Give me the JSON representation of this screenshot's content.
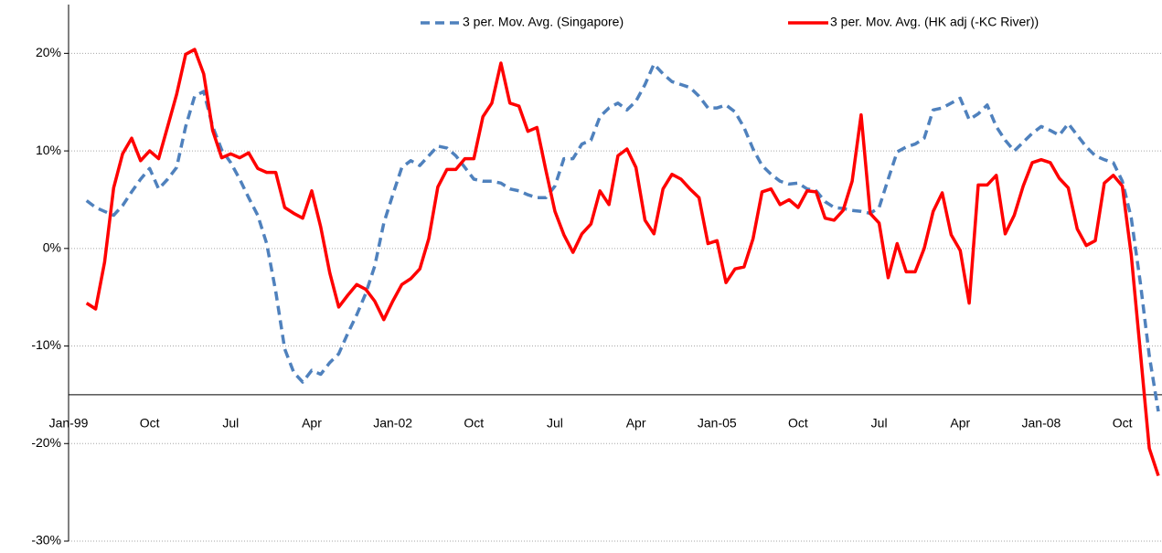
{
  "chart_data": {
    "type": "line",
    "categories": [
      "Jan-99",
      null,
      null,
      null,
      null,
      null,
      null,
      null,
      null,
      "Oct",
      null,
      null,
      null,
      null,
      null,
      null,
      null,
      null,
      "Jul",
      null,
      null,
      null,
      null,
      null,
      null,
      null,
      null,
      "Apr",
      null,
      null,
      null,
      null,
      null,
      null,
      null,
      null,
      "Jan-02",
      null,
      null,
      null,
      null,
      null,
      null,
      null,
      null,
      "Oct",
      null,
      null,
      null,
      null,
      null,
      null,
      null,
      null,
      "Jul",
      null,
      null,
      null,
      null,
      null,
      null,
      null,
      null,
      "Apr",
      null,
      null,
      null,
      null,
      null,
      null,
      null,
      null,
      "Jan-05",
      null,
      null,
      null,
      null,
      null,
      null,
      null,
      null,
      "Oct",
      null,
      null,
      null,
      null,
      null,
      null,
      null,
      null,
      "Jul",
      null,
      null,
      null,
      null,
      null,
      null,
      null,
      null,
      "Apr",
      null,
      null,
      null,
      null,
      null,
      null,
      null,
      null,
      "Jan-08",
      null,
      null,
      null,
      null,
      null,
      null,
      null,
      null,
      "Oct",
      null,
      null,
      null,
      null
    ],
    "series": [
      {
        "name": "3 per. Mov. Avg. (Singapore)",
        "color": "#4f81bd",
        "dash": true,
        "values": [
          null,
          null,
          4.9,
          4.2,
          3.8,
          3.4,
          4.4,
          5.8,
          7.1,
          8.2,
          6.1,
          7.1,
          8.3,
          12.5,
          15.6,
          16.1,
          12.5,
          10.1,
          8.8,
          7.1,
          5.2,
          3.4,
          0.5,
          -4.4,
          -10.3,
          -12.7,
          -13.7,
          -12.5,
          -12.9,
          -11.7,
          -10.8,
          -8.7,
          -6.8,
          -4.6,
          -1.8,
          2.6,
          5.5,
          8.3,
          9.0,
          8.5,
          9.5,
          10.5,
          10.3,
          9.5,
          8.3,
          7.1,
          6.9,
          6.9,
          6.7,
          6.1,
          5.9,
          5.5,
          5.2,
          5.2,
          6.4,
          9.2,
          9.2,
          10.7,
          11.1,
          13.5,
          14.4,
          14.9,
          14.2,
          15.1,
          16.8,
          18.9,
          17.9,
          17.1,
          16.8,
          16.5,
          15.6,
          14.4,
          14.4,
          14.7,
          14.0,
          12.4,
          10.2,
          8.5,
          7.6,
          6.9,
          6.6,
          6.7,
          6.1,
          5.9,
          4.8,
          4.2,
          4.1,
          3.9,
          3.8,
          3.6,
          4.2,
          7.1,
          9.9,
          10.4,
          10.7,
          11.3,
          14.2,
          14.4,
          14.9,
          15.4,
          13.2,
          13.8,
          14.7,
          12.5,
          11.1,
          10.0,
          10.9,
          11.8,
          12.5,
          12.1,
          11.6,
          12.8,
          11.6,
          10.4,
          9.5,
          9.1,
          8.8,
          6.9,
          3.1,
          -3.5,
          -11.0,
          -16.7
        ]
      },
      {
        "name": "3 per. Mov. Avg. (HK adj (-KC River))",
        "color": "#ff0000",
        "dash": false,
        "values": [
          null,
          null,
          -5.6,
          -6.2,
          -1.4,
          6.2,
          9.7,
          11.3,
          9.0,
          10.0,
          9.2,
          12.5,
          15.8,
          19.9,
          20.4,
          17.9,
          12.1,
          9.3,
          9.7,
          9.3,
          9.8,
          8.2,
          7.8,
          7.8,
          4.2,
          3.6,
          3.1,
          5.9,
          2.2,
          -2.5,
          -6.0,
          -4.8,
          -3.7,
          -4.2,
          -5.4,
          -7.3,
          -5.4,
          -3.7,
          -3.1,
          -2.1,
          1.0,
          6.3,
          8.1,
          8.1,
          9.2,
          9.2,
          13.5,
          14.9,
          19.0,
          14.9,
          14.6,
          12.0,
          12.4,
          8.0,
          3.8,
          1.4,
          -0.4,
          1.5,
          2.5,
          5.9,
          4.5,
          9.5,
          10.2,
          8.3,
          2.9,
          1.5,
          6.1,
          7.6,
          7.1,
          6.1,
          5.2,
          0.5,
          0.8,
          -3.5,
          -2.1,
          -1.9,
          1.0,
          5.8,
          6.1,
          4.5,
          5.0,
          4.2,
          5.9,
          5.8,
          3.1,
          2.9,
          3.9,
          6.9,
          13.7,
          3.6,
          2.6,
          -3.0,
          0.5,
          -2.4,
          -2.4,
          0,
          3.8,
          5.7,
          1.4,
          -0.2,
          -5.6,
          6.5,
          6.5,
          7.5,
          1.5,
          3.4,
          6.4,
          8.8,
          9.1,
          8.8,
          7.2,
          6.2,
          2.0,
          0.3,
          0.8,
          6.7,
          7.5,
          6.4,
          -0.7,
          -10.6,
          -20.5,
          -23.3
        ]
      }
    ],
    "ylim": [
      -30,
      25
    ],
    "yticks": [
      {
        "value": -30,
        "label": "-30%"
      },
      {
        "value": -20,
        "label": "-20%"
      },
      {
        "value": -10,
        "label": "-10%"
      },
      {
        "value": 0,
        "label": "0%"
      },
      {
        "value": 10,
        "label": "10%"
      },
      {
        "value": 20,
        "label": "20%"
      }
    ],
    "x_axis_at": -15,
    "grid": true,
    "legend": "top"
  }
}
